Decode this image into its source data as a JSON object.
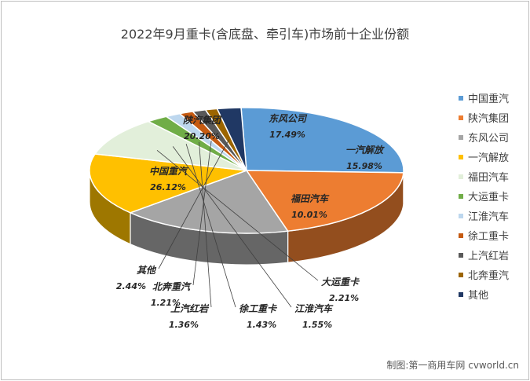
{
  "chart_data": {
    "type": "pie",
    "variant": "3d",
    "title": "2022年9月重卡(含底盘、牵引车)市场前十企业份额",
    "series": [
      {
        "name": "中国重汽",
        "label": "26.12%",
        "value": 26.12,
        "color": "#5b9bd5"
      },
      {
        "name": "陕汽集团",
        "label": "20.20%",
        "value": 20.2,
        "color": "#ed7d31"
      },
      {
        "name": "东风公司",
        "label": "17.49%",
        "value": 17.49,
        "color": "#a5a5a5"
      },
      {
        "name": "一汽解放",
        "label": "15.98%",
        "value": 15.98,
        "color": "#ffc000"
      },
      {
        "name": "福田汽车",
        "label": "10.01%",
        "value": 10.01,
        "color": "#e2efda"
      },
      {
        "name": "大运重卡",
        "label": "2.21%",
        "value": 2.21,
        "color": "#70ad47"
      },
      {
        "name": "江淮汽车",
        "label": "1.55%",
        "value": 1.55,
        "color": "#bdd7ee"
      },
      {
        "name": "徐工重卡",
        "label": "1.43%",
        "value": 1.43,
        "color": "#c55a11"
      },
      {
        "name": "上汽红岩",
        "label": "1.36%",
        "value": 1.36,
        "color": "#595959"
      },
      {
        "name": "北奔重汽",
        "label": "1.21%",
        "value": 1.21,
        "color": "#9c6500"
      },
      {
        "name": "其他",
        "label": "2.44%",
        "value": 2.44,
        "color": "#203864"
      }
    ],
    "legend_position": "right"
  },
  "source_note": "制图:第一商用车网 cvworld.cn"
}
